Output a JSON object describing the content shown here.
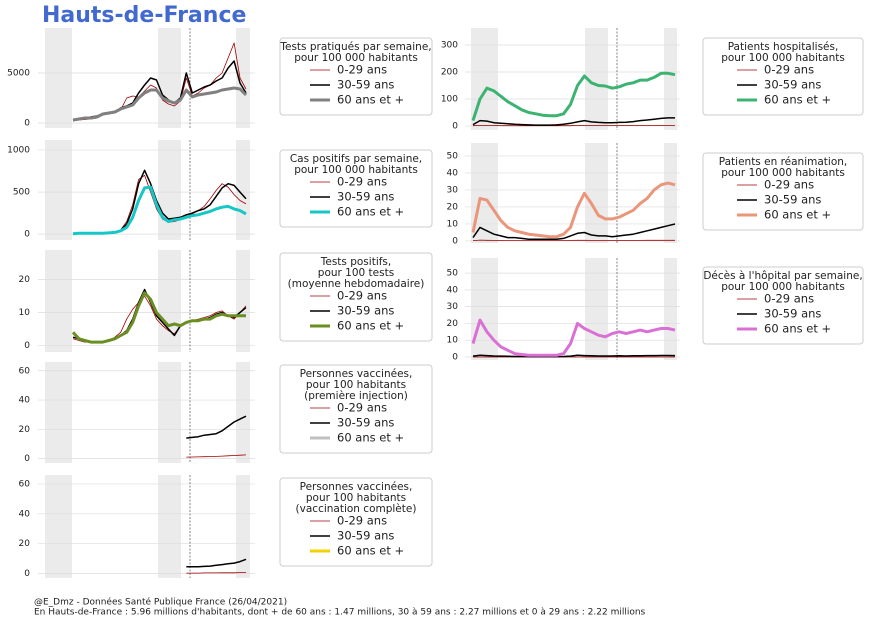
{
  "title": "Hauts-de-France",
  "footer": [
    "@E_Dmz - Données Santé Publique France (26/04/2021)",
    "En Hauts-de-France : 5.96 millions d'habitants, dont + de 60 ans : 1.47 millions, 30 à 59 ans : 2.27 millions et 0 à 29 ans : 2.22 millions"
  ],
  "chart_data": [
    {
      "type": "line",
      "legend_title": [
        "Tests pratiqués par semaine,",
        "pour 100 000 habitants"
      ],
      "ylim": [
        -500,
        9500
      ],
      "yticks": [
        0,
        5000
      ],
      "grid": true,
      "series": [
        {
          "name": "0-29 ans",
          "color": "#a00000",
          "values": [
            200,
            300,
            350,
            400,
            500,
            800,
            900,
            1000,
            1300,
            2500,
            2700,
            2600,
            3200,
            3800,
            3500,
            2300,
            1900,
            1700,
            2200,
            4500,
            2700,
            3000,
            3500,
            3800,
            4500,
            5000,
            6500,
            8000,
            4500,
            3400
          ]
        },
        {
          "name": "30-59 ans",
          "color": "#000000",
          "values": [
            300,
            400,
            500,
            600,
            700,
            900,
            1000,
            1100,
            1500,
            1700,
            2000,
            3000,
            3800,
            4500,
            4300,
            2800,
            2300,
            2000,
            2500,
            5000,
            3000,
            3300,
            3600,
            3800,
            4200,
            4500,
            5500,
            6200,
            4000,
            3000
          ]
        },
        {
          "name": "60 ans et +",
          "color": "#808080",
          "values": [
            300,
            400,
            500,
            500,
            600,
            900,
            1000,
            1100,
            1400,
            1600,
            1800,
            2500,
            3000,
            3300,
            3300,
            2500,
            2200,
            2000,
            2300,
            3300,
            2600,
            2800,
            2900,
            3000,
            3100,
            3300,
            3400,
            3500,
            3400,
            2800
          ]
        }
      ]
    },
    {
      "type": "line",
      "legend_title": [
        "Cas positifs par semaine,",
        "pour 100 000 habitants"
      ],
      "ylim": [
        -70,
        1120
      ],
      "yticks": [
        0,
        500,
        1000
      ],
      "grid": true,
      "series": [
        {
          "name": "0-29 ans",
          "color": "#a00000",
          "values": [
            5,
            5,
            5,
            5,
            5,
            5,
            10,
            20,
            50,
            150,
            350,
            650,
            700,
            500,
            300,
            180,
            140,
            150,
            170,
            210,
            240,
            280,
            330,
            420,
            520,
            600,
            560,
            470,
            400,
            360
          ]
        },
        {
          "name": "30-59 ans",
          "color": "#000000",
          "values": [
            5,
            5,
            5,
            5,
            5,
            5,
            10,
            20,
            45,
            120,
            300,
            600,
            760,
            600,
            400,
            250,
            180,
            190,
            200,
            230,
            250,
            280,
            300,
            350,
            450,
            550,
            600,
            580,
            500,
            420
          ]
        },
        {
          "name": "60 ans et +",
          "color": "#17c7c7",
          "values": [
            5,
            10,
            10,
            10,
            10,
            10,
            15,
            20,
            40,
            80,
            200,
            400,
            550,
            560,
            350,
            200,
            150,
            170,
            180,
            200,
            220,
            230,
            250,
            270,
            300,
            320,
            330,
            300,
            280,
            240
          ]
        }
      ]
    },
    {
      "type": "line",
      "legend_title": [
        "Tests positifs,",
        "pour 100 tests",
        "(moyenne hebdomadaire)"
      ],
      "ylim": [
        -2,
        29
      ],
      "yticks": [
        0,
        10,
        20
      ],
      "grid": true,
      "series": [
        {
          "name": "0-29 ans",
          "color": "#a00000",
          "values": [
            2,
            1.5,
            1,
            1,
            1,
            1,
            1.5,
            2.5,
            4,
            8,
            11,
            13,
            15,
            12,
            8,
            6,
            4.5,
            3.5,
            6,
            7,
            7.5,
            8,
            8.5,
            9,
            10,
            10.5,
            9,
            8,
            10,
            12
          ]
        },
        {
          "name": "30-59 ans",
          "color": "#000000",
          "values": [
            2.5,
            2,
            1.5,
            1,
            1,
            1,
            1.5,
            2,
            3,
            4.5,
            8,
            13,
            17,
            13,
            9,
            7,
            5,
            3,
            6,
            7,
            7.5,
            7.5,
            8,
            8.5,
            9.5,
            10,
            9,
            8.5,
            10,
            11.5
          ]
        },
        {
          "name": "60 ans et +",
          "color": "#6b8e23",
          "values": [
            4,
            2,
            1.5,
            1,
            1,
            1,
            1.5,
            2,
            3,
            4,
            7,
            12,
            16,
            14,
            10,
            8,
            6,
            6.5,
            6,
            7,
            7.5,
            7.5,
            8,
            8,
            9,
            9.5,
            9,
            9,
            9,
            9
          ]
        }
      ]
    },
    {
      "type": "line",
      "legend_title": [
        "Personnes vaccinées,",
        "pour 100 habitants",
        "(première injection)"
      ],
      "ylim": [
        -3,
        66
      ],
      "yticks": [
        0,
        20,
        40,
        60
      ],
      "grid": true,
      "series": [
        {
          "name": "0-29 ans",
          "color": "#a00000",
          "values": [
            null,
            null,
            null,
            null,
            null,
            null,
            null,
            null,
            null,
            null,
            null,
            null,
            null,
            null,
            null,
            null,
            null,
            null,
            null,
            1,
            1.1,
            1.2,
            1.3,
            1.4,
            1.5,
            1.7,
            1.9,
            2.1,
            2.3,
            2.5
          ]
        },
        {
          "name": "30-59 ans",
          "color": "#000000",
          "values": [
            null,
            null,
            null,
            null,
            null,
            null,
            null,
            null,
            null,
            null,
            null,
            null,
            null,
            null,
            null,
            null,
            null,
            null,
            null,
            14,
            14.5,
            15,
            16,
            16.5,
            17,
            19,
            22,
            25,
            27,
            29
          ]
        },
        {
          "name": "60 ans et +",
          "color": "#c0c0c0",
          "values": [
            null,
            null,
            null,
            null,
            null,
            null,
            null,
            null,
            null,
            null,
            null,
            null,
            null,
            null,
            null,
            null,
            null,
            null,
            null,
            null,
            null,
            null,
            null,
            null,
            null,
            null,
            null,
            null,
            null,
            null
          ]
        }
      ]
    },
    {
      "type": "line",
      "legend_title": [
        "Personnes vaccinées,",
        "pour 100 habitants",
        "(vaccination complète)"
      ],
      "ylim": [
        -3,
        66
      ],
      "yticks": [
        0,
        20,
        40,
        60
      ],
      "grid": true,
      "series": [
        {
          "name": "0-29 ans",
          "color": "#a00000",
          "values": [
            null,
            null,
            null,
            null,
            null,
            null,
            null,
            null,
            null,
            null,
            null,
            null,
            null,
            null,
            null,
            null,
            null,
            null,
            null,
            0.3,
            0.3,
            0.3,
            0.4,
            0.4,
            0.4,
            0.5,
            0.5,
            0.5,
            0.6,
            0.6
          ]
        },
        {
          "name": "30-59 ans",
          "color": "#000000",
          "values": [
            null,
            null,
            null,
            null,
            null,
            null,
            null,
            null,
            null,
            null,
            null,
            null,
            null,
            null,
            null,
            null,
            null,
            null,
            null,
            4.5,
            4.5,
            4.6,
            4.8,
            5,
            5.5,
            6,
            6.5,
            7,
            8,
            9.5
          ]
        },
        {
          "name": "60 ans et +",
          "color": "#f5d000",
          "values": [
            null,
            null,
            null,
            null,
            null,
            null,
            null,
            null,
            null,
            null,
            null,
            null,
            null,
            null,
            null,
            null,
            null,
            null,
            null,
            null,
            null,
            null,
            null,
            null,
            null,
            null,
            null,
            null,
            null,
            null
          ]
        }
      ]
    },
    {
      "type": "line",
      "legend_title": [
        "Patients hospitalisés,",
        "pour 100 000 habitants"
      ],
      "ylim": [
        -15,
        363
      ],
      "yticks": [
        0,
        100,
        200,
        300
      ],
      "grid": true,
      "series": [
        {
          "name": "0-29 ans",
          "color": "#a00000",
          "values": [
            1,
            2,
            2,
            2,
            1,
            1,
            1,
            1,
            1,
            1,
            1,
            1,
            1,
            1,
            1,
            2,
            2,
            2,
            2,
            2,
            2,
            2,
            2,
            2,
            2,
            2,
            2,
            2,
            2,
            2
          ]
        },
        {
          "name": "30-59 ans",
          "color": "#000000",
          "values": [
            5,
            20,
            18,
            12,
            10,
            8,
            6,
            5,
            4,
            3,
            3,
            3,
            4,
            6,
            10,
            15,
            20,
            15,
            13,
            12,
            12,
            13,
            14,
            16,
            20,
            22,
            25,
            28,
            30,
            30
          ]
        },
        {
          "name": "60 ans et +",
          "color": "#3cb371",
          "values": [
            20,
            100,
            140,
            130,
            110,
            90,
            75,
            60,
            50,
            45,
            40,
            38,
            38,
            45,
            80,
            150,
            185,
            160,
            150,
            148,
            140,
            145,
            155,
            160,
            170,
            170,
            180,
            195,
            195,
            190
          ]
        }
      ]
    },
    {
      "type": "line",
      "legend_title": [
        "Patients en réanimation,",
        "pour 100 000 habitants"
      ],
      "ylim": [
        -1.2,
        57.6
      ],
      "yticks": [
        0,
        10,
        20,
        30,
        40,
        50
      ],
      "grid": true,
      "series": [
        {
          "name": "0-29 ans",
          "color": "#a00000",
          "values": [
            0.2,
            0.5,
            0.4,
            0.3,
            0.3,
            0.2,
            0.2,
            0.2,
            0.2,
            0.2,
            0.2,
            0.2,
            0.2,
            0.2,
            0.3,
            0.4,
            0.4,
            0.3,
            0.3,
            0.3,
            0.3,
            0.3,
            0.3,
            0.3,
            0.3,
            0.4,
            0.4,
            0.4,
            0.4,
            0.4
          ]
        },
        {
          "name": "30-59 ans",
          "color": "#000000",
          "values": [
            2,
            8,
            6,
            4,
            3,
            2,
            2,
            1.5,
            1,
            1,
            1,
            1,
            1,
            1.5,
            3,
            4.5,
            5,
            3.5,
            3,
            3,
            2.5,
            3,
            3.5,
            4,
            5,
            6,
            7,
            8,
            9,
            10
          ]
        },
        {
          "name": "60 ans et +",
          "color": "#e9967a",
          "values": [
            5,
            25,
            24,
            18,
            12,
            8,
            6,
            5,
            4,
            3.5,
            3,
            2.5,
            2.5,
            4,
            8,
            20,
            28,
            22,
            15,
            13,
            13,
            14,
            16,
            18,
            22,
            25,
            30,
            33,
            34,
            33
          ]
        }
      ]
    },
    {
      "type": "line",
      "legend_title": [
        "Décès à l'hôpital par semaine,",
        "pour 100 000 habitants"
      ],
      "ylim": [
        -1.8,
        59
      ],
      "yticks": [
        0,
        10,
        20,
        30,
        40,
        50
      ],
      "grid": true,
      "series": [
        {
          "name": "0-29 ans",
          "color": "#a00000",
          "values": [
            0,
            0,
            0,
            0,
            0,
            0,
            0,
            0,
            0,
            0,
            0,
            0,
            0,
            0,
            0,
            0,
            0,
            0,
            0,
            0,
            0,
            0,
            0,
            0,
            0,
            0,
            0,
            0,
            0,
            0
          ]
        },
        {
          "name": "30-59 ans",
          "color": "#000000",
          "values": [
            0.5,
            1,
            0.8,
            0.6,
            0.5,
            0.4,
            0.3,
            0.3,
            0.2,
            0.2,
            0.2,
            0.2,
            0.2,
            0.3,
            0.5,
            1,
            0.8,
            0.7,
            0.6,
            0.6,
            0.6,
            0.7,
            0.6,
            0.7,
            0.7,
            0.8,
            0.8,
            0.9,
            0.9,
            0.8
          ]
        },
        {
          "name": "60 ans et +",
          "color": "#da70d6",
          "values": [
            8,
            22,
            15,
            10,
            6,
            4,
            2,
            1.5,
            1,
            1,
            1,
            1,
            1,
            2,
            8,
            20,
            17,
            15,
            13,
            12,
            14,
            15,
            14,
            15,
            16,
            15,
            16,
            17,
            17,
            16
          ]
        }
      ]
    }
  ]
}
